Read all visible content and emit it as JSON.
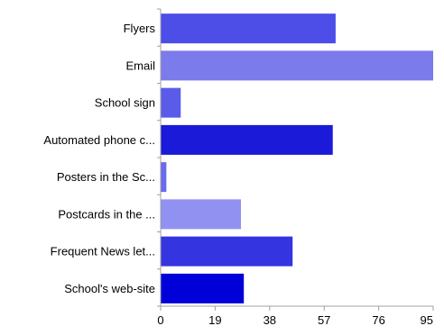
{
  "chart_data": {
    "type": "bar",
    "orientation": "horizontal",
    "categories": [
      "Flyers",
      "Email",
      "School sign",
      "Automated phone c...",
      "Posters in the Sc...",
      "Postcards in the ...",
      "Frequent News let...",
      "School's web-site"
    ],
    "values": [
      61,
      95,
      7,
      60,
      2,
      28,
      46,
      29
    ],
    "colors": [
      "#4d4de8",
      "#7b7bec",
      "#5b5bea",
      "#1a1ad8",
      "#6a6aee",
      "#9191f2",
      "#3434e0",
      "#0000d8"
    ],
    "xlim": [
      0,
      95
    ],
    "xticks": [
      0,
      19,
      38,
      57,
      76,
      95
    ],
    "grid": false,
    "legend": "none",
    "title": "",
    "xlabel": "",
    "ylabel": ""
  }
}
